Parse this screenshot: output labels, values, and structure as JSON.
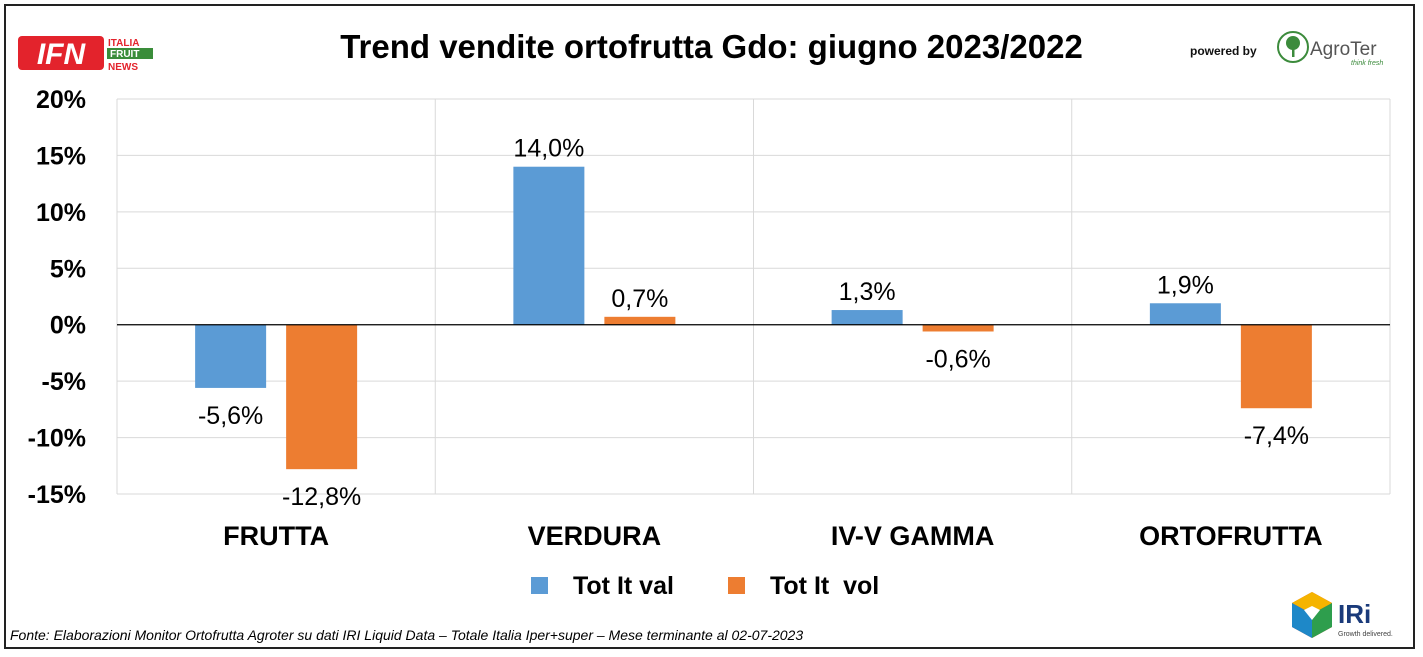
{
  "logos": {
    "ifn": {
      "letters": "IFN",
      "line1": "ITALIA",
      "line2": "FRUIT",
      "line3": "NEWS",
      "red": "#e3232c",
      "green": "#3a8d3a"
    },
    "powered_by": "powered by",
    "agroter": {
      "name": "AgroTer",
      "tagline": "think fresh",
      "green": "#3c8b3c"
    },
    "iri": {
      "name": "IRi",
      "tagline": "Growth delivered."
    }
  },
  "source_note": "Fonte: Elaborazioni Monitor Ortofrutta Agroter su dati IRI Liquid Data – Totale Italia Iper+super – Mese terminante al 02-07-2023",
  "chart_data": {
    "type": "bar",
    "title": "Trend vendite ortofrutta Gdo: giugno 2023/2022",
    "categories": [
      "FRUTTA",
      "VERDURA",
      "IV-V GAMMA",
      "ORTOFRUTTA"
    ],
    "series": [
      {
        "name": "Tot It val",
        "color": "#5b9bd5",
        "values": [
          -5.6,
          14.0,
          1.3,
          1.9
        ],
        "labels": [
          "-5,6%",
          "14,0%",
          "1,3%",
          "1,9%"
        ]
      },
      {
        "name": "Tot It  vol",
        "color": "#ed7d31",
        "values": [
          -12.8,
          0.7,
          -0.6,
          -7.4
        ],
        "labels": [
          "-12,8%",
          "0,7%",
          "-0,6%",
          "-7,4%"
        ]
      }
    ],
    "ylim": [
      -15,
      20
    ],
    "yticks": [
      20,
      15,
      10,
      5,
      0,
      -5,
      -10,
      -15
    ],
    "ytick_labels": [
      "20%",
      "15%",
      "10%",
      "5%",
      "0%",
      "-5%",
      "-10%",
      "-15%"
    ],
    "grid": true,
    "legend": "bottom"
  }
}
